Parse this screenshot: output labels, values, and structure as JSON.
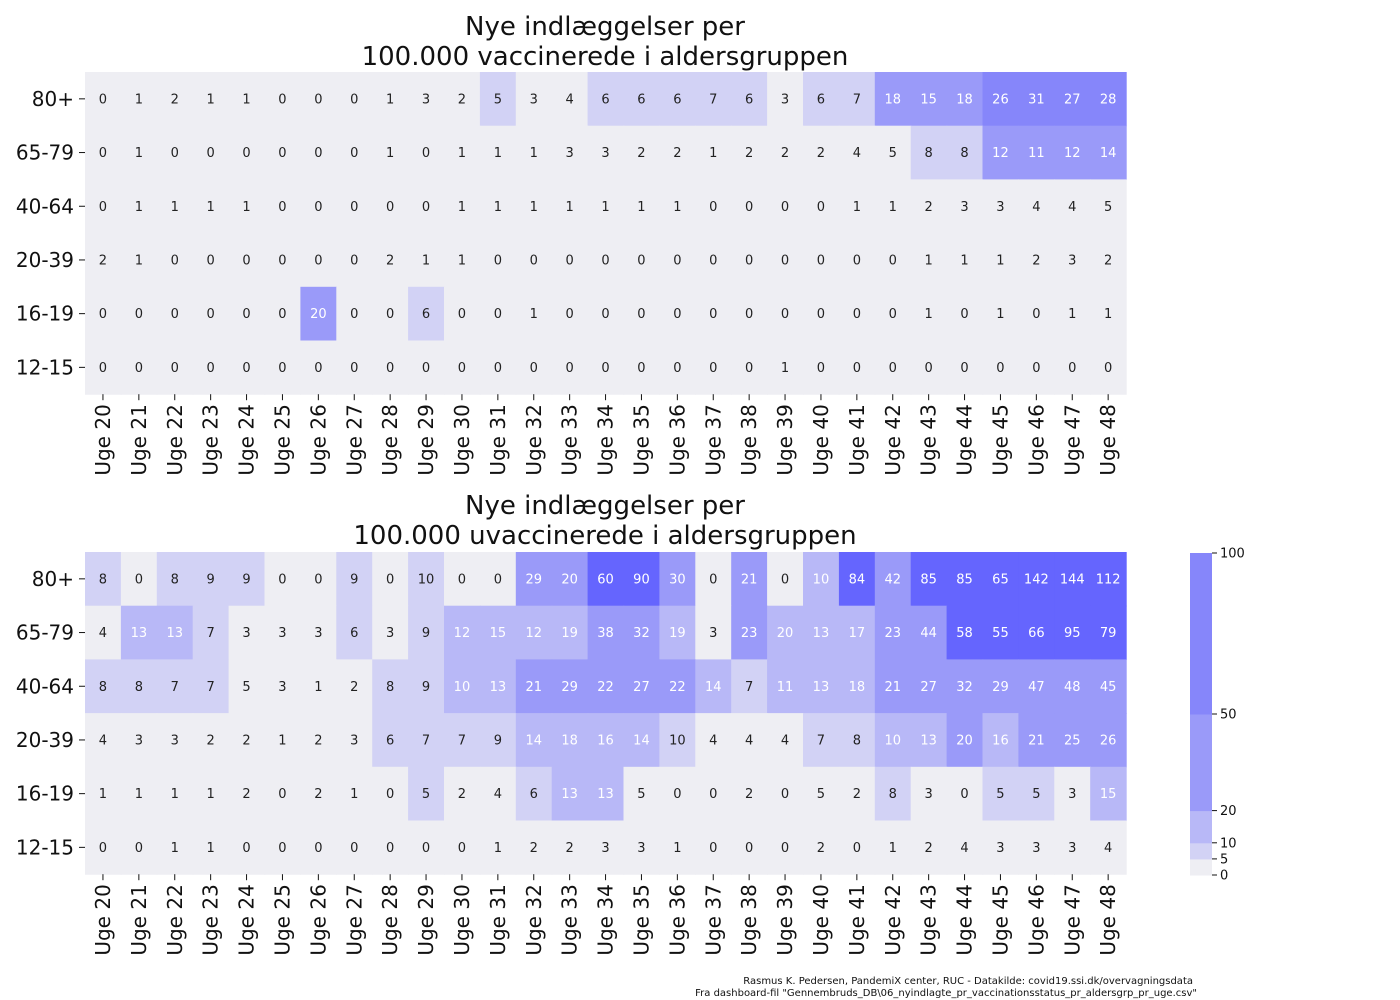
{
  "colors": {
    "scale": [
      "#eeeef3",
      "#d2d2f5",
      "#b8b8f7",
      "#9a9af9",
      "#8686fa",
      "#6565fe"
    ],
    "text_dark": "#222222",
    "text_light": "#ffffff"
  },
  "colorbar": {
    "bounds": [
      0,
      5,
      10,
      20,
      50,
      100
    ],
    "tick_labels": [
      "0",
      "5",
      "10",
      "20",
      "50",
      "100"
    ]
  },
  "chart_data": [
    {
      "type": "heatmap",
      "title_line1": "Nye indlæggelser per",
      "title_line2": "100.000 vaccinerede i aldersgruppen",
      "rows": [
        "80+",
        "65-79",
        "40-64",
        "20-39",
        "16-19",
        "12-15"
      ],
      "columns": [
        "Uge 20",
        "Uge 21",
        "Uge 22",
        "Uge 23",
        "Uge 24",
        "Uge 25",
        "Uge 26",
        "Uge 27",
        "Uge 28",
        "Uge 29",
        "Uge 30",
        "Uge 31",
        "Uge 32",
        "Uge 33",
        "Uge 34",
        "Uge 35",
        "Uge 36",
        "Uge 37",
        "Uge 38",
        "Uge 39",
        "Uge 40",
        "Uge 41",
        "Uge 42",
        "Uge 43",
        "Uge 44",
        "Uge 45",
        "Uge 46",
        "Uge 47",
        "Uge 48"
      ],
      "values": [
        [
          0,
          1,
          2,
          1,
          1,
          0,
          0,
          0,
          1,
          3,
          2,
          5,
          3,
          4,
          6,
          6,
          6,
          7,
          6,
          3,
          6,
          7,
          18,
          15,
          18,
          26,
          31,
          27,
          28
        ],
        [
          0,
          1,
          0,
          0,
          0,
          0,
          0,
          0,
          1,
          0,
          1,
          1,
          1,
          3,
          3,
          2,
          2,
          1,
          2,
          2,
          2,
          4,
          5,
          8,
          8,
          12,
          11,
          12,
          14
        ],
        [
          0,
          1,
          1,
          1,
          1,
          0,
          0,
          0,
          0,
          0,
          1,
          1,
          1,
          1,
          1,
          1,
          1,
          0,
          0,
          0,
          0,
          1,
          1,
          2,
          3,
          3,
          4,
          4,
          5
        ],
        [
          2,
          1,
          0,
          0,
          0,
          0,
          0,
          0,
          2,
          1,
          1,
          0,
          0,
          0,
          0,
          0,
          0,
          0,
          0,
          0,
          0,
          0,
          0,
          1,
          1,
          1,
          2,
          3,
          2
        ],
        [
          0,
          0,
          0,
          0,
          0,
          0,
          20,
          0,
          0,
          6,
          0,
          0,
          1,
          0,
          0,
          0,
          0,
          0,
          0,
          0,
          0,
          0,
          0,
          1,
          0,
          1,
          0,
          1,
          1
        ],
        [
          0,
          0,
          0,
          0,
          0,
          0,
          0,
          0,
          0,
          0,
          0,
          0,
          0,
          0,
          0,
          0,
          0,
          0,
          0,
          1,
          0,
          0,
          0,
          0,
          0,
          0,
          0,
          0,
          0
        ]
      ],
      "cell_colors": [
        [
          0,
          0,
          0,
          0,
          0,
          0,
          0,
          0,
          0,
          0,
          0,
          1,
          0,
          0,
          1,
          1,
          1,
          1,
          1,
          0,
          1,
          1,
          3,
          3,
          3,
          4,
          4,
          4,
          4
        ],
        [
          0,
          0,
          0,
          0,
          0,
          0,
          0,
          0,
          0,
          0,
          0,
          0,
          0,
          0,
          0,
          0,
          0,
          0,
          0,
          0,
          0,
          0,
          0,
          1,
          1,
          3,
          3,
          3,
          3
        ],
        [
          0,
          0,
          0,
          0,
          0,
          0,
          0,
          0,
          0,
          0,
          0,
          0,
          0,
          0,
          0,
          0,
          0,
          0,
          0,
          0,
          0,
          0,
          0,
          0,
          0,
          0,
          0,
          0,
          0
        ],
        [
          0,
          0,
          0,
          0,
          0,
          0,
          0,
          0,
          0,
          0,
          0,
          0,
          0,
          0,
          0,
          0,
          0,
          0,
          0,
          0,
          0,
          0,
          0,
          0,
          0,
          0,
          0,
          0,
          0
        ],
        [
          0,
          0,
          0,
          0,
          0,
          0,
          3,
          0,
          0,
          1,
          0,
          0,
          0,
          0,
          0,
          0,
          0,
          0,
          0,
          0,
          0,
          0,
          0,
          0,
          0,
          0,
          0,
          0,
          0
        ],
        [
          0,
          0,
          0,
          0,
          0,
          0,
          0,
          0,
          0,
          0,
          0,
          0,
          0,
          0,
          0,
          0,
          0,
          0,
          0,
          0,
          0,
          0,
          0,
          0,
          0,
          0,
          0,
          0,
          0
        ]
      ]
    },
    {
      "type": "heatmap",
      "title_line1": "Nye indlæggelser per",
      "title_line2": "100.000 uvaccinerede i aldersgruppen",
      "rows": [
        "80+",
        "65-79",
        "40-64",
        "20-39",
        "16-19",
        "12-15"
      ],
      "columns": [
        "Uge 20",
        "Uge 21",
        "Uge 22",
        "Uge 23",
        "Uge 24",
        "Uge 25",
        "Uge 26",
        "Uge 27",
        "Uge 28",
        "Uge 29",
        "Uge 30",
        "Uge 31",
        "Uge 32",
        "Uge 33",
        "Uge 34",
        "Uge 35",
        "Uge 36",
        "Uge 37",
        "Uge 38",
        "Uge 39",
        "Uge 40",
        "Uge 41",
        "Uge 42",
        "Uge 43",
        "Uge 44",
        "Uge 45",
        "Uge 46",
        "Uge 47",
        "Uge 48"
      ],
      "values": [
        [
          8,
          0,
          8,
          9,
          9,
          0,
          0,
          9,
          0,
          10,
          0,
          0,
          29,
          20,
          60,
          90,
          30,
          0,
          21,
          0,
          10,
          84,
          42,
          85,
          85,
          65,
          142,
          144,
          112
        ],
        [
          4,
          13,
          13,
          7,
          3,
          3,
          3,
          6,
          3,
          9,
          12,
          15,
          12,
          19,
          38,
          32,
          19,
          3,
          23,
          20,
          13,
          17,
          23,
          44,
          58,
          55,
          66,
          95,
          79
        ],
        [
          8,
          8,
          7,
          7,
          5,
          3,
          1,
          2,
          8,
          9,
          10,
          13,
          21,
          29,
          22,
          27,
          22,
          14,
          7,
          11,
          13,
          18,
          21,
          27,
          32,
          29,
          47,
          48,
          45
        ],
        [
          4,
          3,
          3,
          2,
          2,
          1,
          2,
          3,
          6,
          7,
          7,
          9,
          14,
          18,
          16,
          14,
          10,
          4,
          4,
          4,
          7,
          8,
          10,
          13,
          20,
          16,
          21,
          25,
          26
        ],
        [
          1,
          1,
          1,
          1,
          2,
          0,
          2,
          1,
          0,
          5,
          2,
          4,
          6,
          13,
          13,
          5,
          0,
          0,
          2,
          0,
          5,
          2,
          8,
          3,
          0,
          5,
          5,
          3,
          15
        ],
        [
          0,
          0,
          1,
          1,
          0,
          0,
          0,
          0,
          0,
          0,
          0,
          1,
          2,
          2,
          3,
          3,
          1,
          0,
          0,
          0,
          2,
          0,
          1,
          2,
          4,
          3,
          3,
          3,
          4
        ]
      ],
      "cell_colors": [
        [
          1,
          0,
          1,
          1,
          1,
          0,
          0,
          1,
          0,
          1,
          0,
          0,
          3,
          3,
          5,
          5,
          3,
          0,
          3,
          0,
          2,
          5,
          3,
          5,
          5,
          5,
          5,
          5,
          5
        ],
        [
          0,
          2,
          2,
          1,
          0,
          0,
          0,
          1,
          0,
          1,
          2,
          2,
          2,
          2,
          3,
          3,
          2,
          0,
          3,
          2,
          2,
          2,
          3,
          3,
          5,
          5,
          5,
          5,
          5
        ],
        [
          1,
          1,
          1,
          1,
          0,
          0,
          0,
          0,
          1,
          1,
          2,
          2,
          3,
          3,
          3,
          3,
          3,
          2,
          1,
          2,
          2,
          2,
          3,
          3,
          3,
          3,
          3,
          3,
          3
        ],
        [
          0,
          0,
          0,
          0,
          0,
          0,
          0,
          0,
          1,
          1,
          1,
          1,
          2,
          2,
          2,
          2,
          1,
          0,
          0,
          0,
          1,
          1,
          2,
          2,
          3,
          2,
          3,
          3,
          3
        ],
        [
          0,
          0,
          0,
          0,
          0,
          0,
          0,
          0,
          0,
          1,
          0,
          0,
          1,
          2,
          2,
          0,
          0,
          0,
          0,
          0,
          0,
          0,
          1,
          0,
          0,
          1,
          1,
          0,
          2
        ],
        [
          0,
          0,
          0,
          0,
          0,
          0,
          0,
          0,
          0,
          0,
          0,
          0,
          0,
          0,
          0,
          0,
          0,
          0,
          0,
          0,
          0,
          0,
          0,
          0,
          0,
          0,
          0,
          0,
          0
        ]
      ]
    }
  ],
  "credit": {
    "line1": "Rasmus K. Pedersen, PandemiX center, RUC - Datakilde: covid19.ssi.dk/overvagningsdata",
    "line2": "Fra dashboard-fil \"Gennembruds_DB\\06_nyindlagte_pr_vaccinationsstatus_pr_aldersgrp_pr_uge.csv\""
  }
}
